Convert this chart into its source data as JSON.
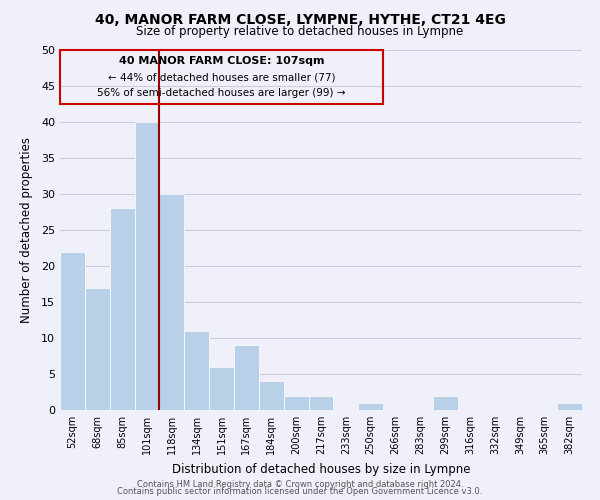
{
  "title": "40, MANOR FARM CLOSE, LYMPNE, HYTHE, CT21 4EG",
  "subtitle": "Size of property relative to detached houses in Lympne",
  "xlabel": "Distribution of detached houses by size in Lympne",
  "ylabel": "Number of detached properties",
  "bar_color": "#b8d0e8",
  "categories": [
    "52sqm",
    "68sqm",
    "85sqm",
    "101sqm",
    "118sqm",
    "134sqm",
    "151sqm",
    "167sqm",
    "184sqm",
    "200sqm",
    "217sqm",
    "233sqm",
    "250sqm",
    "266sqm",
    "283sqm",
    "299sqm",
    "316sqm",
    "332sqm",
    "349sqm",
    "365sqm",
    "382sqm"
  ],
  "values": [
    22,
    17,
    28,
    40,
    30,
    11,
    6,
    9,
    4,
    2,
    2,
    0,
    1,
    0,
    0,
    2,
    0,
    0,
    0,
    0,
    1
  ],
  "ylim": [
    0,
    50
  ],
  "yticks": [
    0,
    5,
    10,
    15,
    20,
    25,
    30,
    35,
    40,
    45,
    50
  ],
  "marker_label": "40 MANOR FARM CLOSE: 107sqm",
  "annotation_line1": "← 44% of detached houses are smaller (77)",
  "annotation_line2": "56% of semi-detached houses are larger (99) →",
  "marker_line_color": "#990000",
  "footer_line1": "Contains HM Land Registry data © Crown copyright and database right 2024.",
  "footer_line2": "Contains public sector information licensed under the Open Government Licence v3.0.",
  "background_color": "#f0f0fa",
  "grid_color": "#ccccdd",
  "box_color": "#cc0000",
  "marker_bar_index": 3
}
